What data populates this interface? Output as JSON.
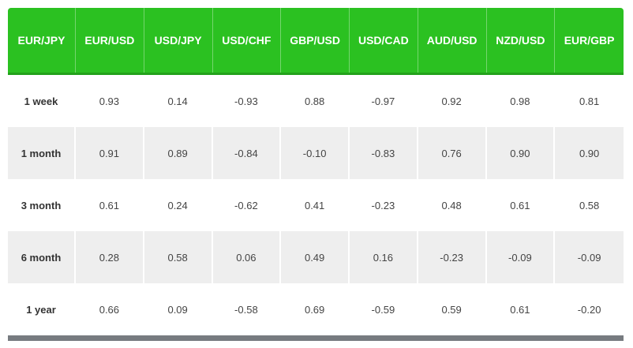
{
  "table": {
    "header": [
      "EUR/JPY",
      "EUR/USD",
      "USD/JPY",
      "USD/CHF",
      "GBP/USD",
      "USD/CAD",
      "AUD/USD",
      "NZD/USD",
      "EUR/GBP"
    ],
    "rows": [
      [
        "1 week",
        "0.93",
        "0.14",
        "-0.93",
        "0.88",
        "-0.97",
        "0.92",
        "0.98",
        "0.81"
      ],
      [
        "1 month",
        "0.91",
        "0.89",
        "-0.84",
        "-0.10",
        "-0.83",
        "0.76",
        "0.90",
        "0.90"
      ],
      [
        "3 month",
        "0.61",
        "0.24",
        "-0.62",
        "0.41",
        "-0.23",
        "0.48",
        "0.61",
        "0.58"
      ],
      [
        "6 month",
        "0.28",
        "0.58",
        "0.06",
        "0.49",
        "0.16",
        "-0.23",
        "-0.09",
        "-0.09"
      ],
      [
        "1 year",
        "0.66",
        "0.09",
        "-0.58",
        "0.69",
        "-0.59",
        "0.59",
        "0.61",
        "-0.20"
      ]
    ]
  }
}
